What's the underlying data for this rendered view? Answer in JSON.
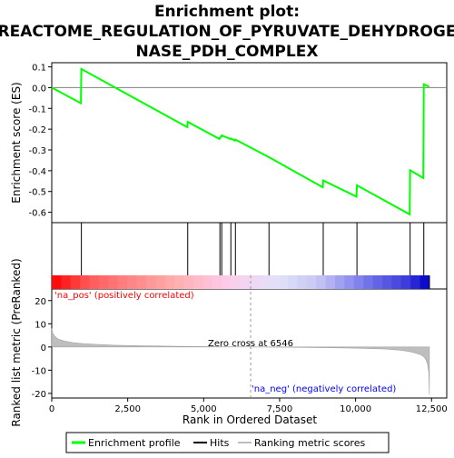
{
  "chart_data": {
    "type": "line",
    "title": "Enrichment plot: REACTOME_REGULATION_OF_PYRUVATE_DEHYDROGENASE_PDH_COMPLEX",
    "title_lines": [
      "Enrichment plot:",
      "REACTOME_REGULATION_OF_PYRUVATE_DEHYDROGE",
      "NASE_PDH_COMPLEX"
    ],
    "enrichment_panel": {
      "ylabel": "Enrichment score (ES)",
      "ylim": [
        -0.65,
        0.12
      ],
      "yticks": [
        0.1,
        0.0,
        -0.1,
        -0.2,
        -0.3,
        -0.4,
        -0.5,
        -0.6
      ],
      "ytick_labels": [
        "0.1",
        "0.0",
        "-0.1",
        "-0.2",
        "-0.3",
        "-0.4",
        "-0.5",
        "-0.6"
      ],
      "series": [
        {
          "name": "Enrichment profile",
          "color": "#00ff00",
          "x": [
            0,
            960,
            975,
            4460,
            4475,
            5520,
            5535,
            5580,
            5595,
            5880,
            5895,
            6030,
            6045,
            7150,
            8920,
            8935,
            10030,
            10045,
            11780,
            11795,
            12230,
            12245,
            12420
          ],
          "y": [
            0.0,
            -0.075,
            0.09,
            -0.19,
            -0.165,
            -0.247,
            -0.24,
            -0.237,
            -0.23,
            -0.247,
            -0.245,
            -0.255,
            -0.25,
            -0.335,
            -0.48,
            -0.447,
            -0.525,
            -0.47,
            -0.61,
            -0.398,
            -0.435,
            0.016,
            0.005
          ]
        }
      ]
    },
    "hits": {
      "name": "Hits",
      "positions": [
        975,
        4475,
        5535,
        5595,
        5895,
        6045,
        7150,
        8935,
        10045,
        11795,
        12245
      ]
    },
    "metric_panel": {
      "name": "Ranking metric scores",
      "ylabel": "Ranked list metric (PreRanked)",
      "ylim": [
        -22,
        25
      ],
      "yticks": [
        20,
        10,
        0,
        -10,
        -20
      ],
      "ytick_labels": [
        "20",
        "10",
        "0",
        "-10",
        "-20"
      ],
      "xlabel": "Rank in Ordered Dataset",
      "xlim": [
        0,
        13000
      ],
      "xticks": [
        0,
        2500,
        5000,
        7500,
        10000,
        12500
      ],
      "xtick_labels": [
        "0",
        "2,500",
        "5,000",
        "7,500",
        "10,000",
        "12,500"
      ],
      "zero_cross": 6546,
      "zero_cross_label": "Zero cross at 6546",
      "pos_label": "'na_pos' (positively correlated)",
      "neg_label": "'na_neg' (negatively correlated)",
      "profile_x": [
        0,
        30,
        100,
        200,
        400,
        700,
        1000,
        1500,
        2000,
        3000,
        4000,
        5000,
        6000,
        6546,
        7000,
        8000,
        9000,
        10000,
        11000,
        11500,
        11800,
        12000,
        12150,
        12250,
        12320,
        12370,
        12410,
        12430
      ],
      "profile_y": [
        8.0,
        6.0,
        4.5,
        3.5,
        2.6,
        1.9,
        1.5,
        1.1,
        0.8,
        0.5,
        0.3,
        0.15,
        0.05,
        0.0,
        -0.05,
        -0.15,
        -0.3,
        -0.5,
        -0.9,
        -1.4,
        -2.0,
        -2.7,
        -3.4,
        -4.2,
        -5.5,
        -7.5,
        -11.0,
        -20.5
      ]
    },
    "legend": {
      "placement": "bottom",
      "entries": [
        "Enrichment profile",
        "Hits",
        "Ranking metric scores"
      ]
    },
    "colors": {
      "profile": "#00ff00",
      "hit": "#000000",
      "metric_fill": "#bebebe",
      "pos_text": "#ff0000",
      "neg_text": "#0000ff"
    }
  }
}
